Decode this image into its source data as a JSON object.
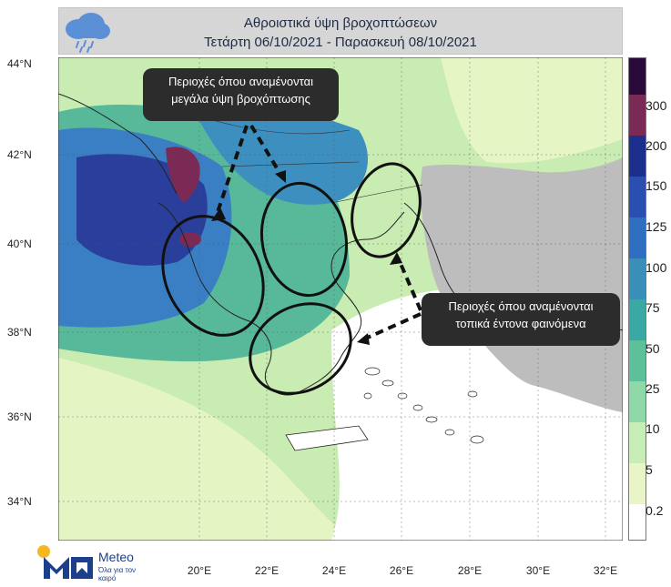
{
  "title": {
    "line1": "Αθροιστικά ύψη βροχοπτώσεων",
    "line2": "Τετάρτη 06/10/2021 - Παρασκευή 08/10/2021"
  },
  "icons": {
    "weather": "rain-cloud-icon",
    "brand": "meteo-sun-logo"
  },
  "axes": {
    "latitudes": [
      "44°N",
      "42°N",
      "40°N",
      "38°N",
      "36°N",
      "34°N"
    ],
    "longitudes": [
      "20°E",
      "22°E",
      "24°E",
      "26°E",
      "28°E",
      "30°E",
      "32°E"
    ]
  },
  "legend": {
    "labels": [
      "300",
      "200",
      "150",
      "125",
      "100",
      "75",
      "50",
      "25",
      "10",
      "5",
      "0.2"
    ],
    "colors": [
      "#2a0a3a",
      "#7a2a55",
      "#1c2f8c",
      "#2a4fb0",
      "#2e6fc2",
      "#3a8fb8",
      "#3aa9a3",
      "#5cc19a",
      "#8fd9a8",
      "#c7eeb6",
      "#e9f5c6",
      "#ffffff"
    ]
  },
  "map_colors": {
    "sea_wet": "#c9ecb2",
    "moderate": "#58b99a",
    "heavy": "#3a7fc4",
    "very_heavy": "#2a3f9c",
    "extreme": "#7a2a55",
    "dry_land": "#bdbdbd",
    "dry_sea": "#ffffff"
  },
  "callouts": {
    "heavy_rain": {
      "line1": "Περιοχές όπου αναμένονται",
      "line2": "μεγάλα ύψη βροχόπτωσης"
    },
    "local_storms": {
      "line1": "Περιοχές όπου αναμένονται",
      "line2": "τοπικά έντονα φαινόμενα"
    }
  },
  "brand": {
    "name": "Meteo",
    "tagline": "Όλα για τον καιρό"
  }
}
